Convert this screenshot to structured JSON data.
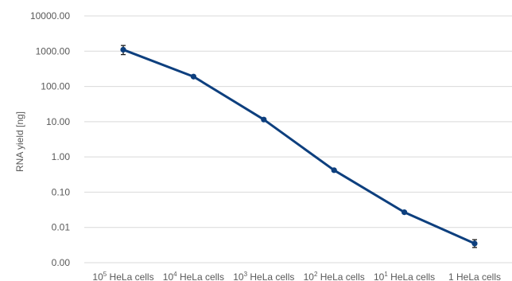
{
  "chart_data": {
    "type": "line",
    "ylabel": "RNA yield [ng]",
    "xlabel": "",
    "y_scale": "log",
    "ylim": [
      0.001,
      10000
    ],
    "y_ticks": [
      {
        "value": 0.001,
        "label": "0.00"
      },
      {
        "value": 0.01,
        "label": "0.01"
      },
      {
        "value": 0.1,
        "label": "0.10"
      },
      {
        "value": 1,
        "label": "1.00"
      },
      {
        "value": 10,
        "label": "10.00"
      },
      {
        "value": 100,
        "label": "100.00"
      },
      {
        "value": 1000,
        "label": "1000.00"
      },
      {
        "value": 10000,
        "label": "10000.00"
      }
    ],
    "categories": [
      {
        "base": "10",
        "exp": "5",
        "text": " HeLa cells"
      },
      {
        "base": "10",
        "exp": "4",
        "text": " HeLa cells"
      },
      {
        "base": "10",
        "exp": "3",
        "text": " HeLa cells"
      },
      {
        "base": "10",
        "exp": "2",
        "text": " HeLa cells"
      },
      {
        "base": "10",
        "exp": "1",
        "text": " HeLa cells"
      },
      {
        "base": "",
        "exp": "",
        "text": "1 HeLa cells"
      }
    ],
    "series": [
      {
        "values": [
          1100,
          190,
          11.5,
          0.42,
          0.027,
          0.0035
        ],
        "error_low": [
          800,
          180,
          11,
          0.4,
          0.025,
          0.0027
        ],
        "error_high": [
          1450,
          200,
          12,
          0.44,
          0.029,
          0.0045
        ]
      }
    ],
    "grid": true,
    "legend": "none",
    "colors": {
      "series": "#0d3f7e",
      "grid": "#d9d9d9",
      "text": "#595959"
    }
  }
}
